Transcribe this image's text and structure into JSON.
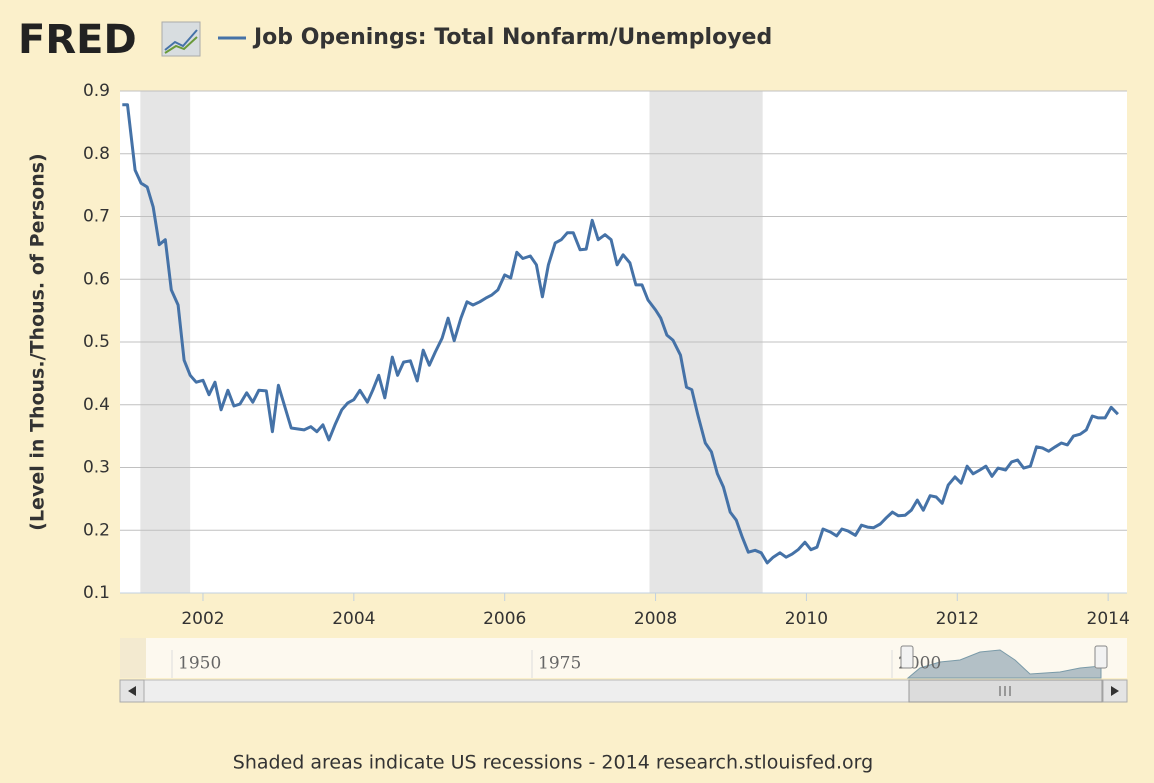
{
  "logo": "FRED",
  "footer": "Shaded areas indicate US recessions - 2014 research.stlouisfed.org",
  "navigator": {
    "labels": [
      "1950",
      "1975",
      "2000"
    ]
  },
  "chart_data": {
    "type": "line",
    "y_label": "(Level in Thous./Thous. of Persons)",
    "x": [
      2000.93,
      2001.0,
      2001.1,
      2001.18,
      2001.26,
      2001.34,
      2001.42,
      2001.5,
      2001.58,
      2001.67,
      2001.75,
      2001.83,
      2001.91,
      2002.0,
      2002.08,
      2002.16,
      2002.24,
      2002.33,
      2002.41,
      2002.49,
      2002.58,
      2002.66,
      2002.74,
      2002.84,
      2002.92,
      2003.0,
      2003.17,
      2003.34,
      2003.43,
      2003.51,
      2003.59,
      2003.67,
      2003.75,
      2003.84,
      2003.92,
      2004.0,
      2004.08,
      2004.18,
      2004.25,
      2004.33,
      2004.41,
      2004.51,
      2004.58,
      2004.66,
      2004.75,
      2004.84,
      2004.92,
      2005.0,
      2005.08,
      2005.17,
      2005.25,
      2005.33,
      2005.42,
      2005.5,
      2005.58,
      2005.67,
      2005.75,
      2005.83,
      2005.91,
      2006.0,
      2006.08,
      2006.16,
      2006.24,
      2006.34,
      2006.42,
      2006.5,
      2006.58,
      2006.67,
      2006.75,
      2006.83,
      2006.91,
      2007.0,
      2007.08,
      2007.16,
      2007.24,
      2007.33,
      2007.41,
      2007.49,
      2007.57,
      2007.66,
      2007.74,
      2007.82,
      2007.9,
      2008.0,
      2008.07,
      2008.15,
      2008.23,
      2008.33,
      2008.41,
      2008.48,
      2008.56,
      2008.66,
      2008.74,
      2008.82,
      2008.9,
      2008.99,
      2009.07,
      2009.15,
      2009.23,
      2009.32,
      2009.4,
      2009.48,
      2009.56,
      2009.65,
      2009.73,
      2009.81,
      2009.89,
      2009.98,
      2010.06,
      2010.14,
      2010.22,
      2010.32,
      2010.4,
      2010.47,
      2010.55,
      2010.65,
      2010.73,
      2010.81,
      2010.89,
      2010.98,
      2011.06,
      2011.14,
      2011.22,
      2011.31,
      2011.39,
      2011.47,
      2011.55,
      2011.64,
      2011.72,
      2011.8,
      2011.88,
      2011.97,
      2012.05,
      2012.13,
      2012.21,
      2012.3,
      2012.38,
      2012.46,
      2012.54,
      2012.64,
      2012.72,
      2012.8,
      2012.88,
      2012.97,
      2013.05,
      2013.13,
      2013.21,
      2013.3,
      2013.38,
      2013.46,
      2013.54,
      2013.63,
      2013.71,
      2013.79,
      2013.87,
      2013.96,
      2014.04,
      2014.13
    ],
    "series": [
      {
        "name": "Job Openings: Total Nonfarm/Unemployed",
        "color": "#4572a7",
        "values": [
          0.878,
          0.878,
          0.774,
          0.753,
          0.747,
          0.715,
          0.655,
          0.663,
          0.583,
          0.559,
          0.471,
          0.447,
          0.436,
          0.439,
          0.416,
          0.436,
          0.392,
          0.423,
          0.398,
          0.401,
          0.419,
          0.404,
          0.423,
          0.422,
          0.357,
          0.431,
          0.363,
          0.36,
          0.365,
          0.357,
          0.368,
          0.344,
          0.368,
          0.392,
          0.403,
          0.408,
          0.423,
          0.404,
          0.423,
          0.447,
          0.411,
          0.476,
          0.447,
          0.468,
          0.47,
          0.438,
          0.487,
          0.463,
          0.484,
          0.506,
          0.538,
          0.502,
          0.538,
          0.564,
          0.559,
          0.564,
          0.57,
          0.575,
          0.583,
          0.607,
          0.602,
          0.643,
          0.633,
          0.637,
          0.623,
          0.572,
          0.623,
          0.658,
          0.663,
          0.674,
          0.674,
          0.647,
          0.648,
          0.694,
          0.663,
          0.671,
          0.663,
          0.623,
          0.639,
          0.626,
          0.591,
          0.591,
          0.567,
          0.551,
          0.538,
          0.511,
          0.503,
          0.479,
          0.428,
          0.424,
          0.384,
          0.339,
          0.325,
          0.29,
          0.269,
          0.229,
          0.216,
          0.189,
          0.165,
          0.168,
          0.164,
          0.148,
          0.157,
          0.164,
          0.157,
          0.162,
          0.169,
          0.181,
          0.169,
          0.173,
          0.202,
          0.197,
          0.191,
          0.202,
          0.199,
          0.192,
          0.208,
          0.205,
          0.204,
          0.21,
          0.22,
          0.229,
          0.223,
          0.224,
          0.232,
          0.248,
          0.232,
          0.255,
          0.253,
          0.243,
          0.272,
          0.285,
          0.275,
          0.302,
          0.29,
          0.296,
          0.302,
          0.286,
          0.299,
          0.296,
          0.309,
          0.312,
          0.299,
          0.302,
          0.333,
          0.331,
          0.326,
          0.333,
          0.339,
          0.336,
          0.35,
          0.353,
          0.36,
          0.382,
          0.379,
          0.379,
          0.396,
          0.385
        ]
      }
    ],
    "recessions": [
      [
        2001.17,
        2001.83
      ],
      [
        2007.92,
        2009.42
      ]
    ],
    "xlim": [
      2000.9,
      2014.25
    ],
    "xticks": [
      2002,
      2004,
      2006,
      2008,
      2010,
      2012,
      2014
    ],
    "ylim": [
      0.1,
      0.9
    ],
    "yticks": [
      0.1,
      0.2,
      0.3,
      0.4,
      0.5,
      0.6,
      0.7,
      0.8,
      0.9
    ],
    "grid": true
  }
}
